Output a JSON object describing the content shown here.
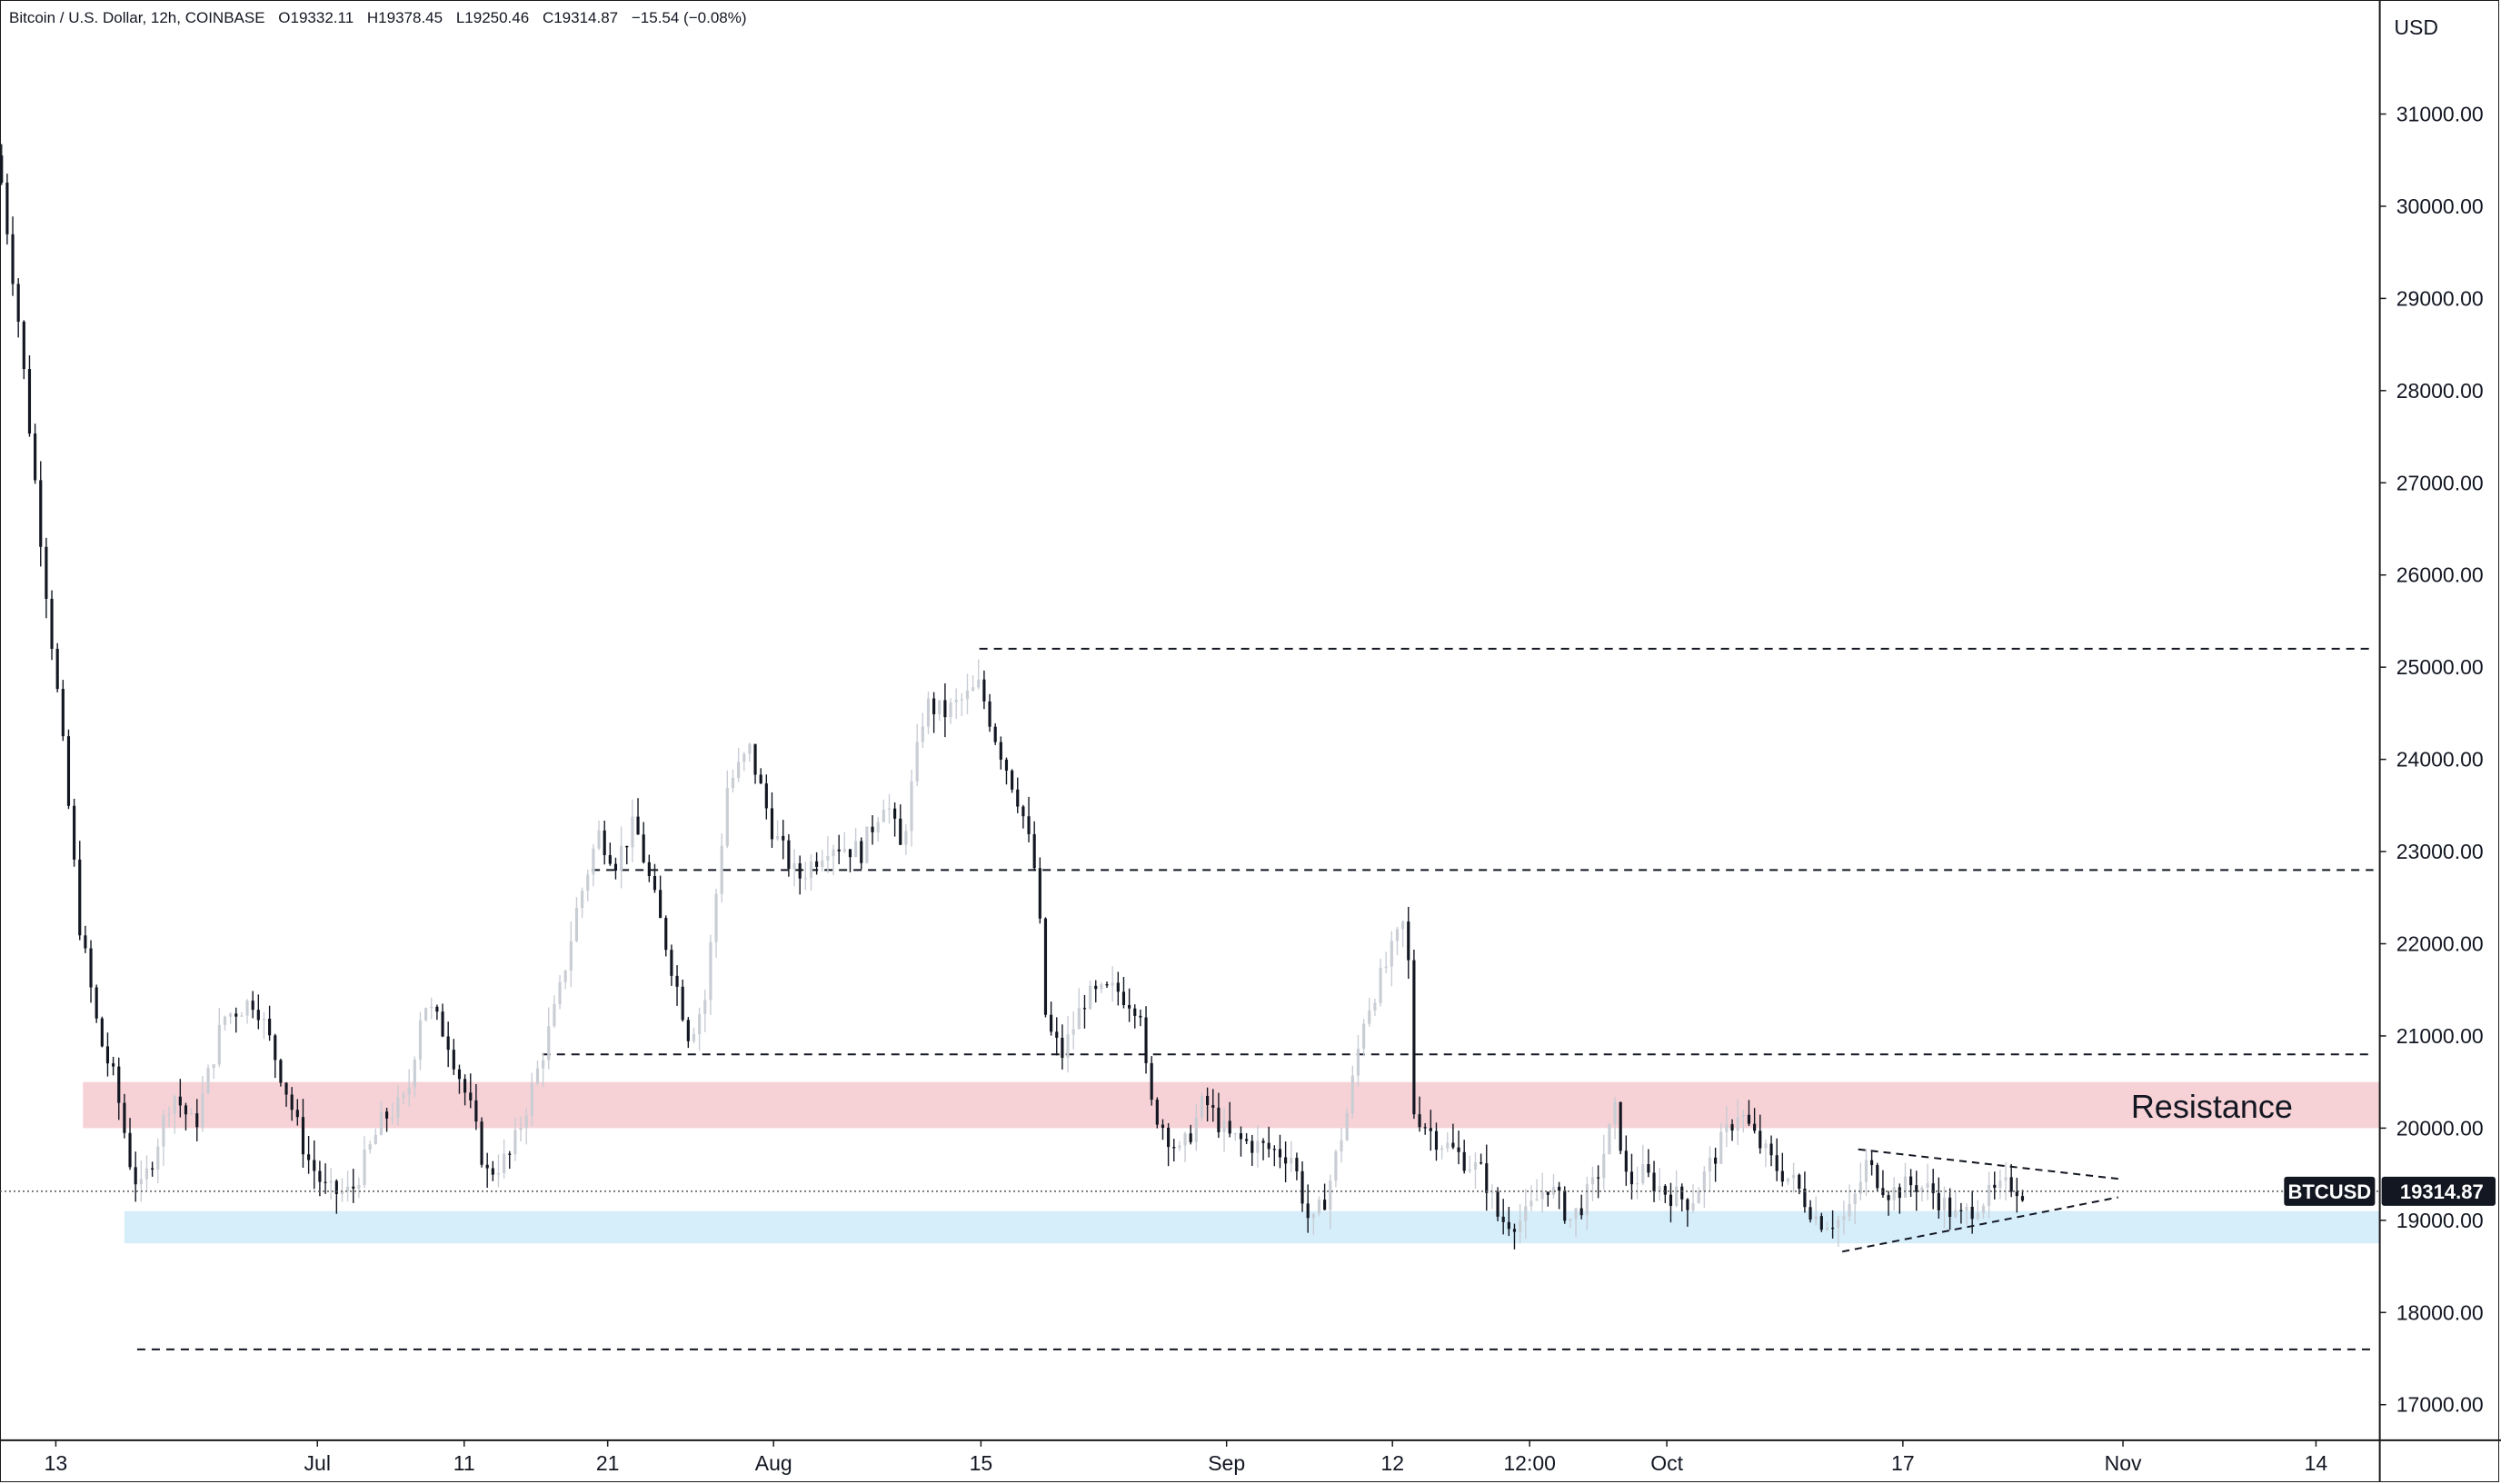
{
  "header": {
    "symbol_title": "Bitcoin / U.S. Dollar, 12h, COINBASE",
    "open": "O19332.11",
    "high": "H19378.45",
    "low": "L19250.46",
    "close": "C19314.87",
    "change": "−15.54 (−0.08%)"
  },
  "price_axis": {
    "currency": "USD",
    "tick_labels": [
      "31000.00",
      "30000.00",
      "29000.00",
      "28000.00",
      "27000.00",
      "26000.00",
      "25000.00",
      "24000.00",
      "23000.00",
      "22000.00",
      "21000.00",
      "20000.00",
      "19000.00",
      "18000.00",
      "17000.00"
    ]
  },
  "time_axis": {
    "tick_labels": [
      "13",
      "Jul",
      "11",
      "21",
      "Aug",
      "15",
      "Sep",
      "12",
      "12:00",
      "Oct",
      "17",
      "Nov",
      "14"
    ]
  },
  "last_price": {
    "symbol_label": "BTCUSD",
    "price_label": "19314.87",
    "value": 19314.87
  },
  "annotations": {
    "resistance_label": "Resistance"
  },
  "colors": {
    "up_candle": "#c9cdd4",
    "down_candle": "#131722",
    "resistance_zone": "#f6d2d6",
    "support_zone": "#d5eefa",
    "pill_bg": "#131722",
    "grid": "#eeeeee"
  },
  "chart_data": {
    "type": "candlestick",
    "title": "Bitcoin / U.S. Dollar, 12h, COINBASE",
    "ylabel": "USD",
    "ylim": [
      16600,
      32300
    ],
    "x_categories": [
      "13",
      "Jul",
      "11",
      "21",
      "Aug",
      "15",
      "Sep",
      "12",
      "12:00",
      "Oct",
      "17",
      "Nov",
      "14"
    ],
    "close_path": [
      [
        0,
        30400
      ],
      [
        12,
        28700
      ],
      [
        28,
        26000
      ],
      [
        38,
        24400
      ],
      [
        50,
        22200
      ],
      [
        62,
        21000
      ],
      [
        72,
        20500
      ],
      [
        82,
        19600
      ],
      [
        88,
        19300
      ],
      [
        96,
        19700
      ],
      [
        108,
        20400
      ],
      [
        122,
        20000
      ],
      [
        140,
        21200
      ],
      [
        160,
        21400
      ],
      [
        178,
        20500
      ],
      [
        192,
        19700
      ],
      [
        205,
        19300
      ],
      [
        220,
        19300
      ],
      [
        240,
        20100
      ],
      [
        255,
        20300
      ],
      [
        265,
        21400
      ],
      [
        280,
        21000
      ],
      [
        295,
        20200
      ],
      [
        305,
        19500
      ],
      [
        320,
        19700
      ],
      [
        335,
        20500
      ],
      [
        350,
        21400
      ],
      [
        362,
        22400
      ],
      [
        375,
        23200
      ],
      [
        386,
        22900
      ],
      [
        398,
        23300
      ],
      [
        410,
        22500
      ],
      [
        422,
        21700
      ],
      [
        432,
        21000
      ],
      [
        442,
        21400
      ],
      [
        456,
        23700
      ],
      [
        470,
        24100
      ],
      [
        485,
        23200
      ],
      [
        500,
        22700
      ],
      [
        520,
        23100
      ],
      [
        540,
        23000
      ],
      [
        555,
        23600
      ],
      [
        565,
        23000
      ],
      [
        580,
        24600
      ],
      [
        592,
        24500
      ],
      [
        608,
        24700
      ],
      [
        614,
        24800
      ],
      [
        625,
        24200
      ],
      [
        640,
        23500
      ],
      [
        650,
        22700
      ],
      [
        656,
        21100
      ],
      [
        666,
        20800
      ],
      [
        680,
        21400
      ],
      [
        700,
        21500
      ],
      [
        715,
        21300
      ],
      [
        720,
        20300
      ],
      [
        740,
        19700
      ],
      [
        755,
        20300
      ],
      [
        770,
        19900
      ],
      [
        790,
        19800
      ],
      [
        810,
        19700
      ],
      [
        822,
        18900
      ],
      [
        832,
        19300
      ],
      [
        845,
        20200
      ],
      [
        855,
        21200
      ],
      [
        870,
        21800
      ],
      [
        882,
        22300
      ],
      [
        886,
        20200
      ],
      [
        900,
        19900
      ],
      [
        915,
        19700
      ],
      [
        930,
        19500
      ],
      [
        940,
        19000
      ],
      [
        955,
        19000
      ],
      [
        970,
        19400
      ],
      [
        985,
        19000
      ],
      [
        1000,
        19400
      ],
      [
        1013,
        20200
      ],
      [
        1020,
        19400
      ],
      [
        1030,
        19500
      ],
      [
        1045,
        19300
      ],
      [
        1060,
        19200
      ],
      [
        1075,
        19700
      ],
      [
        1090,
        20200
      ],
      [
        1100,
        19900
      ],
      [
        1112,
        19600
      ],
      [
        1125,
        19400
      ],
      [
        1140,
        19000
      ],
      [
        1155,
        19000
      ],
      [
        1160,
        19100
      ],
      [
        1170,
        19600
      ],
      [
        1185,
        19300
      ],
      [
        1200,
        19400
      ],
      [
        1212,
        19300
      ],
      [
        1228,
        19000
      ],
      [
        1240,
        19200
      ],
      [
        1252,
        19300
      ],
      [
        1262,
        19400
      ],
      [
        1268,
        19315
      ]
    ],
    "horizontal_levels": [
      25200,
      22800,
      20800,
      17600
    ],
    "resistance_zone": [
      20000,
      20500
    ],
    "support_zone": [
      18750,
      19100
    ],
    "last_price": 19314.87,
    "triangle": {
      "upper": [
        [
          1165,
          19770
        ],
        [
          1328,
          19450
        ]
      ],
      "lower": [
        [
          1155,
          18660
        ],
        [
          1328,
          19250
        ]
      ]
    }
  }
}
